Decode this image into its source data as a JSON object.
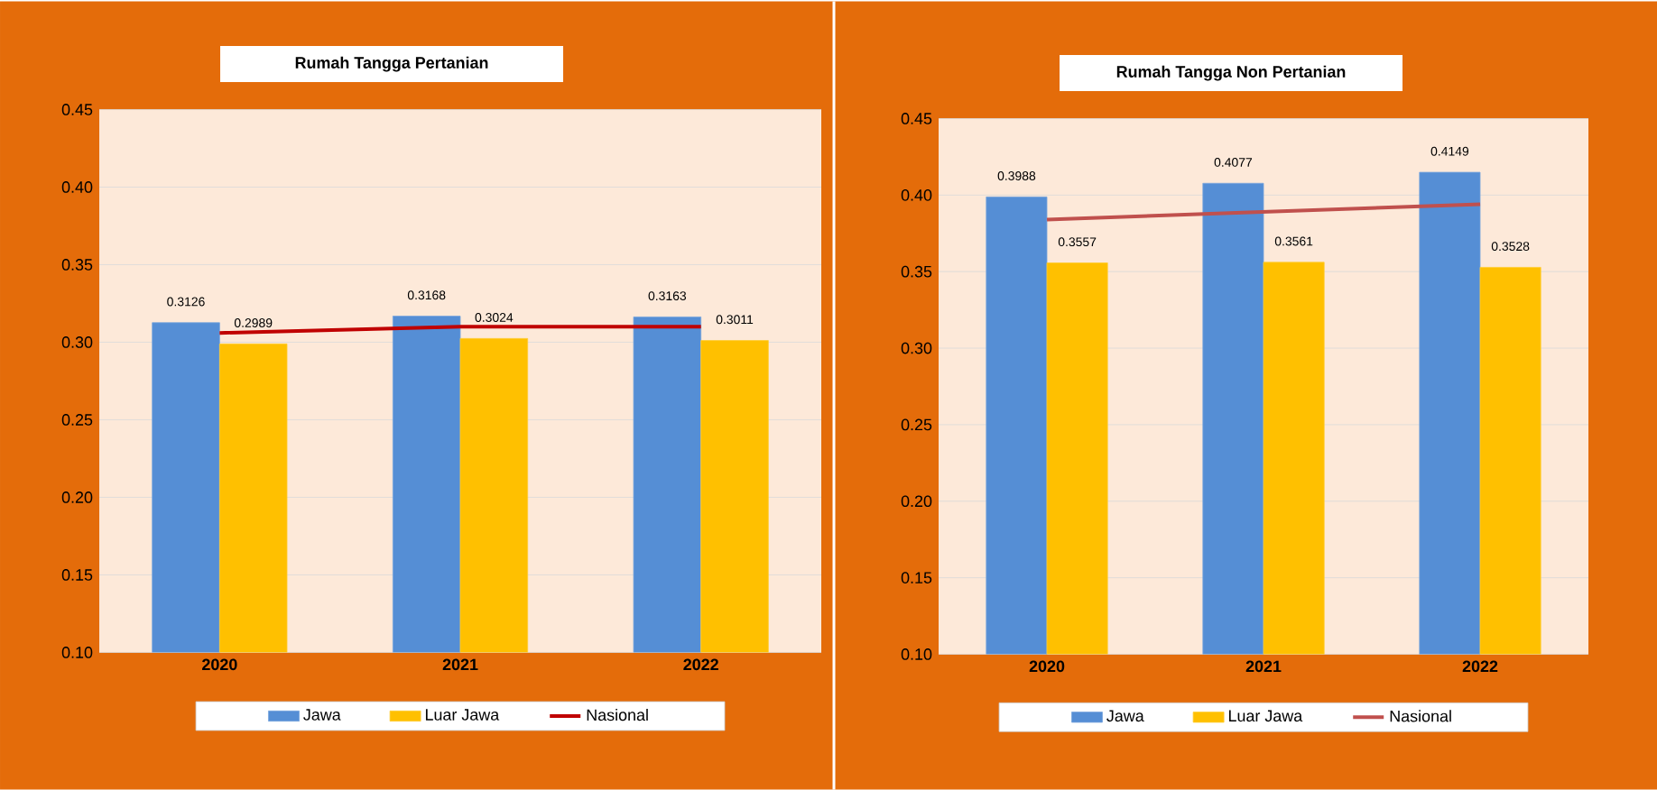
{
  "chart_data": [
    {
      "type": "bar",
      "title": "Rumah Tangga Pertanian",
      "categories": [
        "2020",
        "2021",
        "2022"
      ],
      "series": [
        {
          "name": "Jawa",
          "color": "#558ed5",
          "values": [
            0.3126,
            0.3168,
            0.3163
          ],
          "value_labels": [
            "0.3126",
            "0.3168",
            "0.3163"
          ]
        },
        {
          "name": "Luar Jawa",
          "color": "#ffc000",
          "values": [
            0.2989,
            0.3024,
            0.3011
          ],
          "value_labels": [
            "0.2989",
            "0.3024",
            "0.3011"
          ]
        },
        {
          "name": "Nasional",
          "type": "line",
          "color": "#c00000",
          "values": [
            0.306,
            0.31,
            0.31
          ]
        }
      ],
      "ylim": [
        0.1,
        0.45
      ],
      "yticks": [
        {
          "value": 0.1,
          "label": "0.10"
        },
        {
          "value": 0.15,
          "label": "0.15"
        },
        {
          "value": 0.2,
          "label": "0.20"
        },
        {
          "value": 0.25,
          "label": "0.25"
        },
        {
          "value": 0.3,
          "label": "0.30"
        },
        {
          "value": 0.35,
          "label": "0.35"
        },
        {
          "value": 0.4,
          "label": "0.40"
        },
        {
          "value": 0.45,
          "label": "0.45"
        }
      ],
      "grid": "y",
      "legend": "bottom"
    },
    {
      "type": "bar",
      "title": "Rumah Tangga Non Pertanian",
      "categories": [
        "2020",
        "2021",
        "2022"
      ],
      "series": [
        {
          "name": "Jawa",
          "color": "#558ed5",
          "values": [
            0.3988,
            0.4077,
            0.4149
          ],
          "value_labels": [
            "0.3988",
            "0.4077",
            "0.4149"
          ]
        },
        {
          "name": "Luar Jawa",
          "color": "#ffc000",
          "values": [
            0.3557,
            0.3561,
            0.3528
          ],
          "value_labels": [
            "0.3557",
            "0.3561",
            "0.3528"
          ]
        },
        {
          "name": "Nasional",
          "type": "line",
          "color": "#c0504d",
          "values": [
            0.384,
            0.389,
            0.394
          ]
        }
      ],
      "ylim": [
        0.1,
        0.45
      ],
      "yticks": [
        {
          "value": 0.1,
          "label": "0.10"
        },
        {
          "value": 0.15,
          "label": "0.15"
        },
        {
          "value": 0.2,
          "label": "0.20"
        },
        {
          "value": 0.25,
          "label": "0.25"
        },
        {
          "value": 0.3,
          "label": "0.30"
        },
        {
          "value": 0.35,
          "label": "0.35"
        },
        {
          "value": 0.4,
          "label": "0.40"
        },
        {
          "value": 0.45,
          "label": "0.45"
        }
      ],
      "grid": "y",
      "legend": "bottom"
    }
  ]
}
